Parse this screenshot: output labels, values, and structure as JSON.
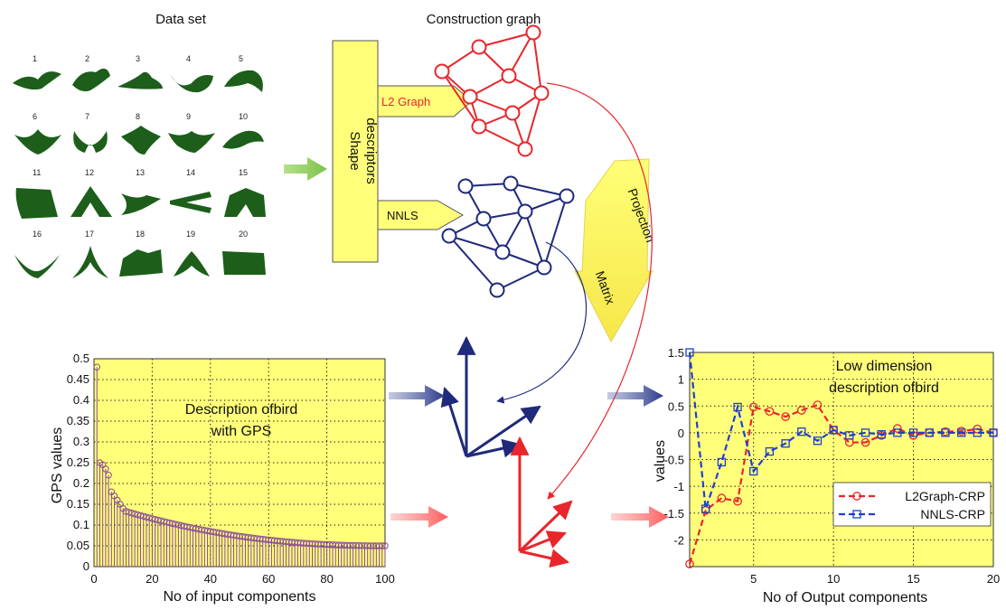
{
  "dataset_title": "Data set",
  "graph_title": "Construction graph",
  "bird_numbers": [
    "1",
    "2",
    "3",
    "4",
    "5",
    "6",
    "7",
    "8",
    "9",
    "10",
    "11",
    "12",
    "13",
    "14",
    "15",
    "16",
    "17",
    "18",
    "19",
    "20"
  ],
  "shape_box": {
    "line1": "Shape",
    "line2": "descriptors"
  },
  "l2_tab": "L2 Graph",
  "nnls_tab": "NNLS",
  "projection_word": "Projection",
  "matrix_word": "Matrix",
  "colors": {
    "red": "#e8262b",
    "blue": "#1f2a7a",
    "yellow": "#ffff7a",
    "green": "#1c5e1a",
    "purple": "#8a4a98"
  },
  "chart_data": [
    {
      "type": "bar",
      "xlabel": "No of input components",
      "ylabel": "GPS values",
      "annotation": [
        "Description ofbird",
        "with GPS"
      ],
      "xlim": [
        0,
        100
      ],
      "ylim": [
        0,
        0.5
      ],
      "xticks": [
        0,
        20,
        40,
        60,
        80,
        100
      ],
      "yticks": [
        0,
        0.05,
        0.1,
        0.15,
        0.2,
        0.25,
        0.3,
        0.35,
        0.4,
        0.45,
        0.5
      ],
      "tick_labels_x": [
        "0",
        "20",
        "40",
        "60",
        "80",
        "100"
      ],
      "tick_labels_y": [
        "0",
        "0.05",
        "0.1",
        "0.15",
        "0.2",
        "0.25",
        "0.3",
        "0.35",
        "0.4",
        "0.45",
        "0.5"
      ],
      "grid": true,
      "n": 100,
      "first_values": [
        0.48,
        0.25,
        0.245,
        0.235,
        0.22,
        0.18,
        0.17,
        0.16,
        0.15,
        0.14
      ],
      "tail_start": 0.135,
      "tail_end": 0.05
    },
    {
      "type": "line",
      "xlabel": "No of Output components",
      "ylabel": "values",
      "annotation": [
        "Low dimension",
        "description ofbird"
      ],
      "xlim": [
        1,
        20
      ],
      "ylim": [
        -2.5,
        1.5
      ],
      "xticks": [
        5,
        10,
        15,
        20
      ],
      "yticks": [
        -2,
        -1.5,
        -1,
        -0.5,
        0,
        0.5,
        1,
        1.5
      ],
      "tick_labels_x": [
        "5",
        "10",
        "15",
        "20"
      ],
      "tick_labels_y": [
        "-2",
        "-1.5",
        "-1",
        "-0.5",
        "0",
        "0.5",
        "1",
        "1.5"
      ],
      "grid": true,
      "legend_position": "lower-right",
      "x": [
        1,
        2,
        3,
        4,
        5,
        6,
        7,
        8,
        9,
        10,
        11,
        12,
        13,
        14,
        15,
        16,
        17,
        18,
        19,
        20
      ],
      "series": [
        {
          "name": "L2Graph-CRP",
          "color": "#e8262b",
          "marker": "circle",
          "values": [
            -2.45,
            -1.45,
            -1.22,
            -1.28,
            0.48,
            0.4,
            0.3,
            0.42,
            0.52,
            0.05,
            -0.18,
            -0.18,
            -0.05,
            0.08,
            -0.05,
            0.0,
            0.02,
            0.03,
            0.07,
            0.0
          ]
        },
        {
          "name": "NNLS-CRP",
          "color": "#1f3fd0",
          "marker": "square",
          "values": [
            1.5,
            -1.42,
            -0.55,
            0.48,
            -0.72,
            -0.35,
            -0.2,
            0.02,
            -0.15,
            0.05,
            -0.05,
            0.0,
            -0.03,
            0.0,
            0.0,
            0.0,
            0.0,
            0.0,
            0.0,
            0.0
          ]
        }
      ]
    }
  ]
}
